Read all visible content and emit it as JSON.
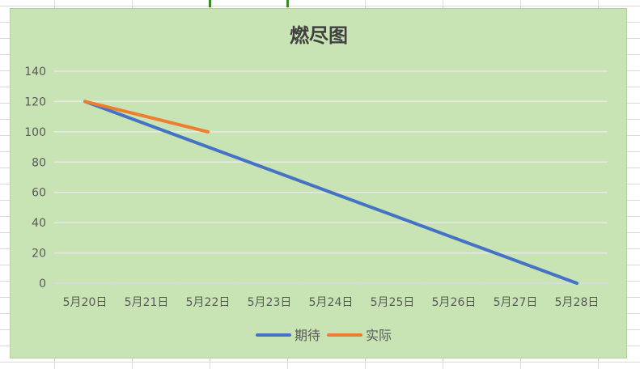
{
  "chart_data": {
    "type": "line",
    "title": "燃尽图",
    "categories": [
      "5月20日",
      "5月21日",
      "5月22日",
      "5月23日",
      "5月24日",
      "5月25日",
      "5月26日",
      "5月27日",
      "5月28日"
    ],
    "series": [
      {
        "name": "期待",
        "color": "#4472c4",
        "values": [
          120,
          105,
          90,
          75,
          60,
          45,
          30,
          15,
          0
        ]
      },
      {
        "name": "实际",
        "color": "#ed7d31",
        "values": [
          120,
          110,
          100,
          null,
          null,
          null,
          null,
          null,
          null
        ]
      }
    ],
    "yticks": [
      0,
      20,
      40,
      60,
      80,
      100,
      120,
      140
    ],
    "ylim": [
      0,
      140
    ],
    "grid": true,
    "legend_position": "bottom"
  }
}
